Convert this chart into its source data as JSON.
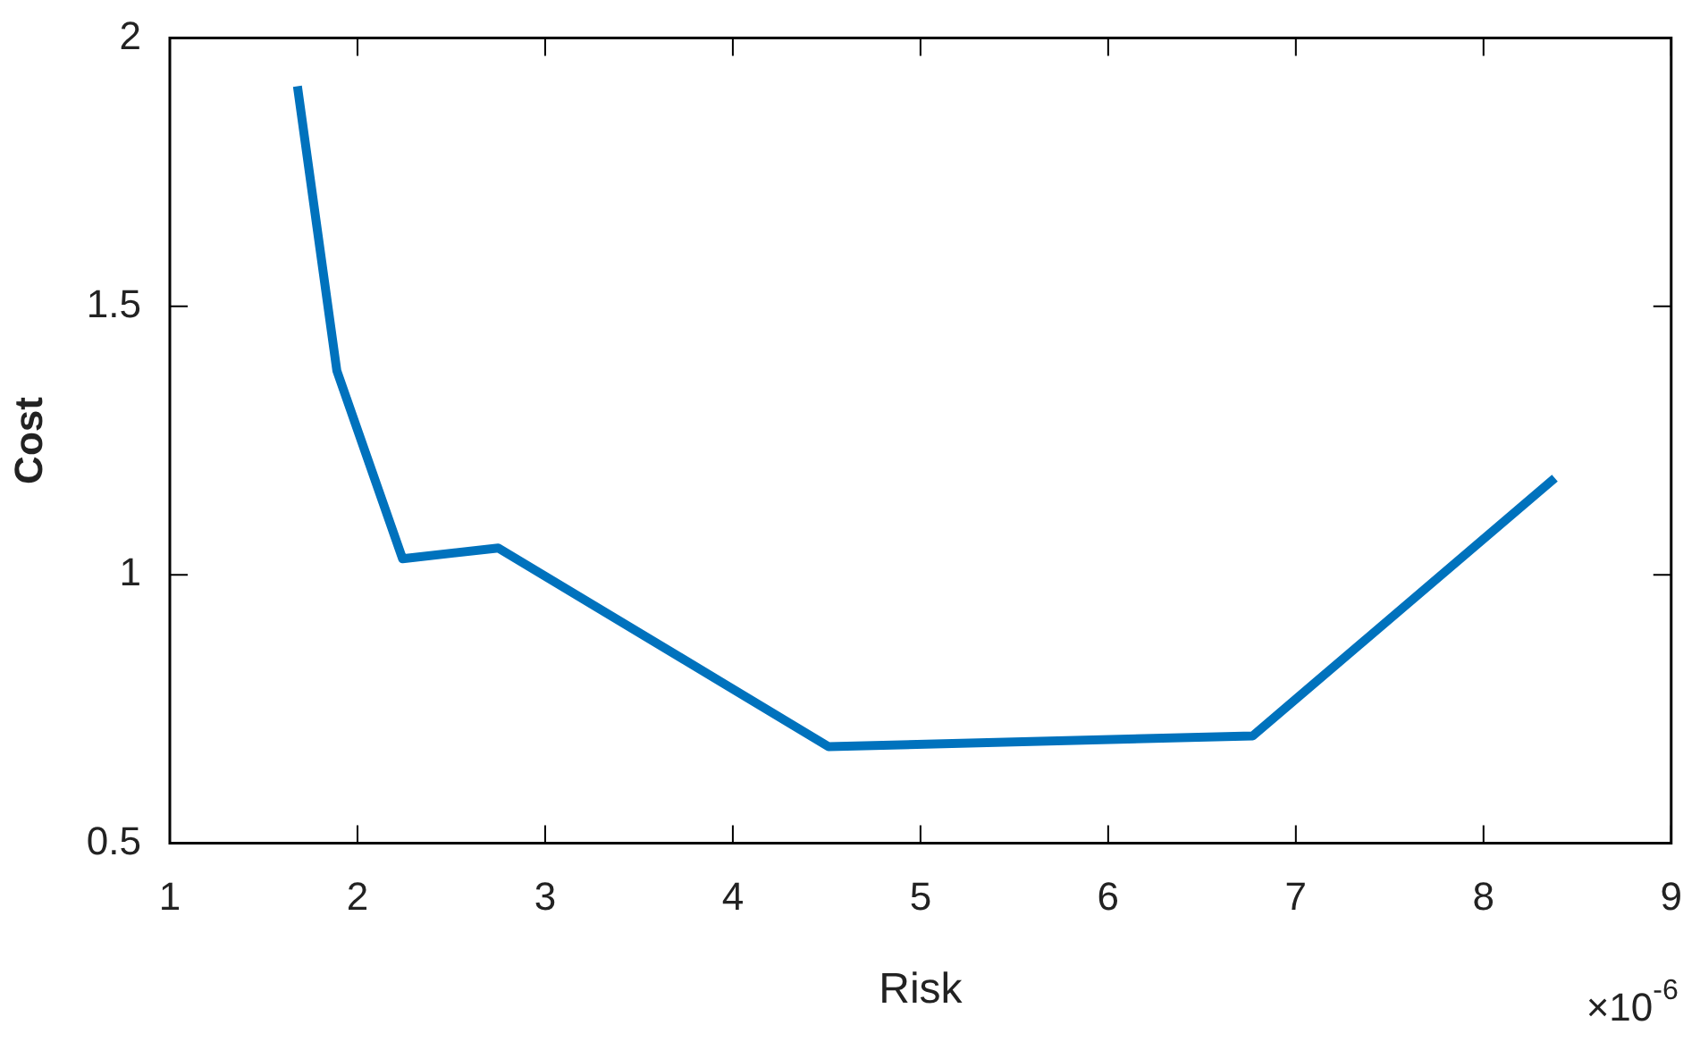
{
  "chart_data": {
    "type": "line",
    "xlabel": "Risk",
    "ylabel": "Cost",
    "x": [
      1.68,
      1.89,
      2.24,
      2.75,
      4.51,
      6.77,
      8.38
    ],
    "series": [
      {
        "color": "#0072bd",
        "values": [
          1.91,
          1.38,
          1.03,
          1.05,
          0.68,
          0.7,
          1.18
        ]
      }
    ],
    "xlim": [
      1,
      9
    ],
    "xticks": [
      1,
      2,
      3,
      4,
      5,
      6,
      7,
      8,
      9
    ],
    "ylim": [
      0.5,
      2
    ],
    "yticks": [
      0.5,
      1,
      1.5,
      2
    ],
    "grid": false,
    "legend": false,
    "marker": "none",
    "line_style": "solid",
    "annotations": [
      "×10$^{-6}$"
    ]
  }
}
